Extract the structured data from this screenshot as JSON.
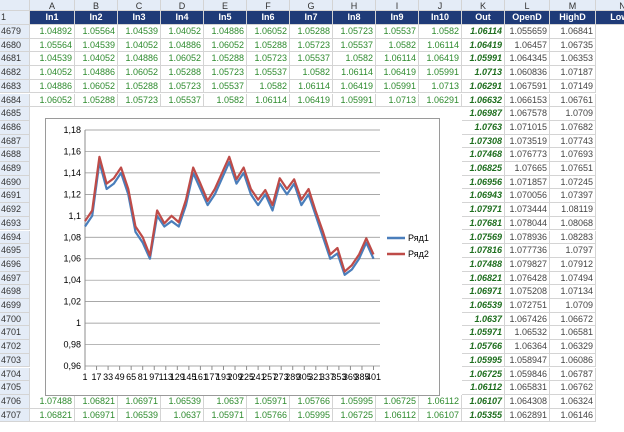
{
  "spreadsheet": {
    "column_letters": [
      "A",
      "B",
      "C",
      "D",
      "E",
      "F",
      "G",
      "H",
      "I",
      "J",
      "K",
      "L",
      "M",
      "N"
    ],
    "header_row": "1",
    "headers": [
      "In1",
      "In2",
      "In3",
      "In4",
      "In5",
      "In6",
      "In7",
      "In8",
      "In9",
      "In10",
      "Out",
      "OpenD",
      "HighD",
      "LowD"
    ],
    "top_rows": [
      {
        "num": "4679",
        "cells": [
          "1.04892",
          "1.05564",
          "1.04539",
          "1.04052",
          "1.04886",
          "1.06052",
          "1.05288",
          "1.05723",
          "1.05537",
          "1.0582",
          "1.06114",
          "1.055659",
          "1.06841"
        ]
      },
      {
        "num": "4680",
        "cells": [
          "1.05564",
          "1.04539",
          "1.04052",
          "1.04886",
          "1.06052",
          "1.05288",
          "1.05723",
          "1.05537",
          "1.0582",
          "1.06114",
          "1.06419",
          "1.06457",
          "1.06735"
        ]
      },
      {
        "num": "4681",
        "cells": [
          "1.04539",
          "1.04052",
          "1.04886",
          "1.06052",
          "1.05288",
          "1.05723",
          "1.05537",
          "1.0582",
          "1.06114",
          "1.06419",
          "1.05991",
          "1.064345",
          "1.06353"
        ]
      },
      {
        "num": "4682",
        "cells": [
          "1.04052",
          "1.04886",
          "1.06052",
          "1.05288",
          "1.05723",
          "1.05537",
          "1.0582",
          "1.06114",
          "1.06419",
          "1.05991",
          "1.0713",
          "1.060836",
          "1.07187"
        ]
      },
      {
        "num": "4683",
        "cells": [
          "1.04886",
          "1.06052",
          "1.05288",
          "1.05723",
          "1.05537",
          "1.0582",
          "1.06114",
          "1.06419",
          "1.05991",
          "1.0713",
          "1.06291",
          "1.067591",
          "1.07149"
        ]
      },
      {
        "num": "4684",
        "cells": [
          "1.06052",
          "1.05288",
          "1.05723",
          "1.05537",
          "1.0582",
          "1.06114",
          "1.06419",
          "1.05991",
          "1.0713",
          "1.06291",
          "1.06632",
          "1.066153",
          "1.06761"
        ]
      }
    ],
    "mid_rows": [
      {
        "num": "4685",
        "cells": [
          "1.06987",
          "1.067578",
          "1.0709"
        ]
      },
      {
        "num": "4686",
        "cells": [
          "1.0763",
          "1.071015",
          "1.07682"
        ]
      },
      {
        "num": "4687",
        "cells": [
          "1.07308",
          "1.073519",
          "1.07743"
        ]
      },
      {
        "num": "4688",
        "cells": [
          "1.07468",
          "1.076773",
          "1.07693"
        ]
      },
      {
        "num": "4689",
        "cells": [
          "1.06825",
          "1.07665",
          "1.07651"
        ]
      },
      {
        "num": "4690",
        "cells": [
          "1.06956",
          "1.071857",
          "1.07245"
        ]
      },
      {
        "num": "4691",
        "cells": [
          "1.06943",
          "1.070056",
          "1.07397"
        ]
      },
      {
        "num": "4692",
        "cells": [
          "1.07971",
          "1.073444",
          "1.08119"
        ]
      },
      {
        "num": "4693",
        "cells": [
          "1.07681",
          "1.078044",
          "1.08068"
        ]
      },
      {
        "num": "4694",
        "cells": [
          "1.07569",
          "1.078936",
          "1.08283"
        ]
      },
      {
        "num": "4695",
        "cells": [
          "1.07816",
          "1.077736",
          "1.0797"
        ]
      },
      {
        "num": "4696",
        "cells": [
          "1.07488",
          "1.079827",
          "1.07912"
        ]
      },
      {
        "num": "4697",
        "cells": [
          "1.06821",
          "1.076428",
          "1.07494"
        ]
      },
      {
        "num": "4698",
        "cells": [
          "1.06971",
          "1.075208",
          "1.07134"
        ]
      },
      {
        "num": "4699",
        "cells": [
          "1.06539",
          "1.072751",
          "1.0709"
        ]
      },
      {
        "num": "4700",
        "cells": [
          "1.0637",
          "1.067426",
          "1.06672"
        ]
      },
      {
        "num": "4701",
        "cells": [
          "1.05971",
          "1.06532",
          "1.06581"
        ]
      },
      {
        "num": "4702",
        "cells": [
          "1.05766",
          "1.06364",
          "1.06329"
        ]
      },
      {
        "num": "4703",
        "cells": [
          "1.05995",
          "1.058947",
          "1.06086"
        ]
      },
      {
        "num": "4704",
        "cells": [
          "1.06725",
          "1.059846",
          "1.06787"
        ]
      },
      {
        "num": "4705",
        "cells": [
          "1.06112",
          "1.065831",
          "1.06762"
        ]
      }
    ],
    "bottom_rows": [
      {
        "num": "4706",
        "cells": [
          "1.07488",
          "1.06821",
          "1.06971",
          "1.06539",
          "1.0637",
          "1.05971",
          "1.05766",
          "1.05995",
          "1.06725",
          "1.06112",
          "1.06107",
          "1.064308",
          "1.06324"
        ]
      },
      {
        "num": "4707",
        "cells": [
          "1.06821",
          "1.06971",
          "1.06539",
          "1.0637",
          "1.05971",
          "1.05766",
          "1.05995",
          "1.06725",
          "1.06112",
          "1.06107",
          "1.05355",
          "1.062891",
          "1.06146"
        ]
      }
    ]
  },
  "chart_data": {
    "type": "line",
    "x": [
      1,
      11,
      21,
      31,
      41,
      51,
      61,
      71,
      81,
      91,
      101,
      111,
      121,
      131,
      141,
      151,
      161,
      171,
      181,
      191,
      201,
      211,
      221,
      231,
      241,
      251,
      261,
      271,
      281,
      291,
      301,
      311,
      321,
      331,
      341,
      351,
      361,
      371,
      381,
      391,
      401
    ],
    "series": [
      {
        "name": "Ряд1",
        "color": "#4a7ebb",
        "values": [
          1.09,
          1.1,
          1.15,
          1.125,
          1.13,
          1.14,
          1.12,
          1.085,
          1.075,
          1.06,
          1.1,
          1.09,
          1.095,
          1.09,
          1.11,
          1.14,
          1.125,
          1.11,
          1.12,
          1.135,
          1.15,
          1.13,
          1.14,
          1.12,
          1.11,
          1.12,
          1.105,
          1.13,
          1.12,
          1.13,
          1.11,
          1.12,
          1.1,
          1.08,
          1.06,
          1.065,
          1.045,
          1.05,
          1.06,
          1.075,
          1.06
        ]
      },
      {
        "name": "Ряд2",
        "color": "#be4b48",
        "values": [
          1.095,
          1.105,
          1.155,
          1.13,
          1.135,
          1.145,
          1.125,
          1.09,
          1.08,
          1.063,
          1.105,
          1.093,
          1.1,
          1.094,
          1.115,
          1.145,
          1.13,
          1.114,
          1.125,
          1.14,
          1.155,
          1.134,
          1.145,
          1.125,
          1.115,
          1.124,
          1.11,
          1.135,
          1.125,
          1.134,
          1.115,
          1.125,
          1.104,
          1.085,
          1.064,
          1.07,
          1.048,
          1.054,
          1.064,
          1.079,
          1.064
        ]
      }
    ],
    "xlim": [
      1,
      410
    ],
    "xticks": [
      1,
      17,
      33,
      49,
      65,
      81,
      97,
      113,
      129,
      145,
      161,
      177,
      193,
      209,
      225,
      241,
      257,
      273,
      289,
      305,
      321,
      337,
      353,
      369,
      385,
      401
    ],
    "ylim": [
      0.96,
      1.18
    ],
    "yticks": [
      {
        "value": 0.96,
        "label": "0,96"
      },
      {
        "value": 0.98,
        "label": "0,98"
      },
      1,
      {
        "value": 1.02,
        "label": "1,02"
      },
      {
        "value": 1.04,
        "label": "1,04"
      },
      {
        "value": 1.06,
        "label": "1,06"
      },
      {
        "value": 1.08,
        "label": "1,08"
      },
      {
        "value": 1.1,
        "label": "1,1"
      },
      {
        "value": 1.12,
        "label": "1,12"
      },
      {
        "value": 1.14,
        "label": "1,14"
      },
      {
        "value": 1.16,
        "label": "1,16"
      },
      {
        "value": 1.18,
        "label": "1,18"
      }
    ],
    "grid": true,
    "legend": "right"
  }
}
